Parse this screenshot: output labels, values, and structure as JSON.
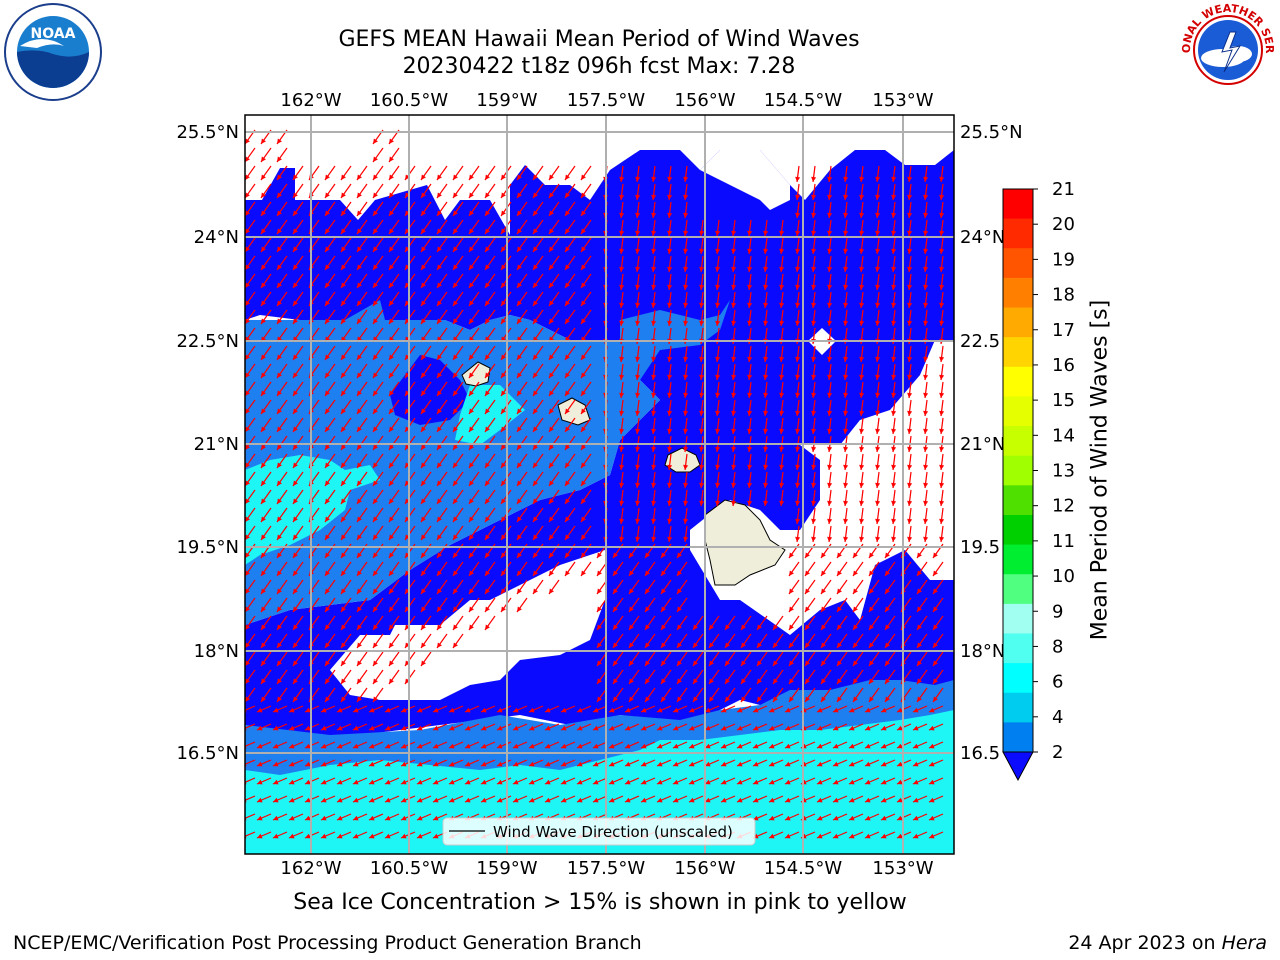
{
  "title": {
    "line1": "GEFS MEAN Hawaii Mean Period of Wind Waves",
    "line2": "20230422 t18z 096h fcst   Max: 7.28"
  },
  "map": {
    "lon_ticks": [
      "162°W",
      "160.5°W",
      "159°W",
      "157.5°W",
      "156°W",
      "154.5°W",
      "153°W"
    ],
    "lat_ticks": [
      "25.5°N",
      "24°N",
      "22.5°N",
      "21°N",
      "19.5°N",
      "18°N",
      "16.5°N"
    ],
    "lat_ticks_right": [
      "25.5°N",
      "24°N",
      "22.5",
      "21°N",
      "19.5",
      "18°N",
      "16.5"
    ],
    "legend_label": "Wind Wave Direction (unscaled)",
    "caption": "Sea Ice Concentration > 15% is shown in pink to yellow"
  },
  "colorbar": {
    "label": "Mean Period of Wind Waves [s]",
    "ticks": [
      "21",
      "20",
      "19",
      "18",
      "17",
      "16",
      "15",
      "14",
      "13",
      "12",
      "11",
      "10",
      "9",
      "8",
      "6",
      "4",
      "2"
    ],
    "colors": [
      "#ff0000",
      "#ff2a00",
      "#ff5500",
      "#ff7f00",
      "#ffaa00",
      "#ffd400",
      "#ffff00",
      "#e6ff00",
      "#c8ff00",
      "#a0ff00",
      "#50e000",
      "#00d000",
      "#00ee30",
      "#50ff80",
      "#a0fff0",
      "#50fff0",
      "#00ffff",
      "#00ccf0",
      "#0080f0"
    ]
  },
  "colors": {
    "deep_blue": "#0a0aff",
    "mid_blue": "#1e7ff0",
    "cyan": "#1ef5f5",
    "land": "#efeeda",
    "arrow": "#ff0000"
  },
  "footer": {
    "left": "NCEP/EMC/Verification Post Processing Product Generation Branch",
    "right_date": "24 Apr 2023 on ",
    "right_host": "Hera"
  },
  "logos": {
    "left": "NOAA",
    "right": "NATIONAL WEATHER SERVICE"
  }
}
